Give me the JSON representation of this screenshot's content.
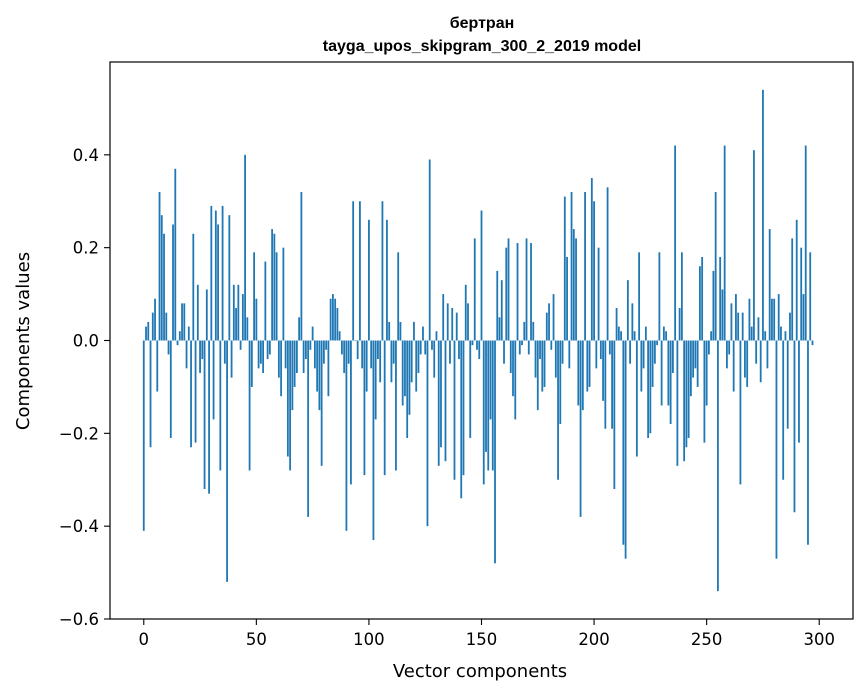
{
  "chart_data": {
    "type": "bar",
    "title": "бертран",
    "subtitle": "tayga_upos_skipgram_300_2_2019 model",
    "xlabel": "Vector components",
    "ylabel": "Components values",
    "xlim": [
      -15,
      315
    ],
    "ylim": [
      -0.6,
      0.6
    ],
    "xticks": [
      0,
      50,
      100,
      150,
      200,
      250,
      300
    ],
    "yticks": [
      -0.6,
      -0.4,
      -0.2,
      0.0,
      0.2,
      0.4
    ],
    "ytick_labels": [
      "−0.6",
      "−0.4",
      "−0.2",
      "0.0",
      "0.2",
      "0.4"
    ],
    "grid": false,
    "bar_color": "#1f77b4",
    "values": [
      -0.41,
      0.03,
      0.04,
      -0.23,
      0.06,
      0.09,
      -0.11,
      0.32,
      0.27,
      0.23,
      0.06,
      -0.03,
      -0.21,
      0.25,
      0.37,
      -0.01,
      0.02,
      0.08,
      0.08,
      -0.06,
      0.03,
      -0.23,
      0.23,
      -0.22,
      0.12,
      -0.07,
      -0.04,
      -0.32,
      0.11,
      -0.33,
      0.29,
      -0.17,
      0.28,
      0.25,
      -0.28,
      0.29,
      -0.05,
      -0.52,
      0.27,
      -0.08,
      0.12,
      0.07,
      0.12,
      -0.02,
      0.1,
      0.4,
      0.05,
      -0.28,
      -0.1,
      0.19,
      0.09,
      -0.06,
      -0.05,
      -0.07,
      0.17,
      -0.04,
      -0.03,
      0.24,
      0.23,
      0.19,
      -0.08,
      -0.12,
      0.2,
      -0.06,
      -0.25,
      -0.28,
      -0.15,
      -0.1,
      -0.07,
      0.05,
      0.32,
      -0.07,
      -0.04,
      -0.38,
      -0.02,
      0.03,
      -0.06,
      -0.11,
      -0.15,
      -0.27,
      -0.05,
      -0.02,
      -0.12,
      0.09,
      0.1,
      0.09,
      0.07,
      0.02,
      -0.03,
      -0.07,
      -0.41,
      -0.05,
      -0.31,
      0.3,
      0.0,
      -0.04,
      0.3,
      -0.06,
      -0.29,
      -0.11,
      0.26,
      -0.06,
      -0.43,
      -0.17,
      -0.04,
      -0.09,
      0.3,
      -0.29,
      0.26,
      0.04,
      -0.09,
      -0.05,
      -0.28,
      0.19,
      0.04,
      -0.14,
      -0.12,
      -0.21,
      -0.16,
      -0.09,
      0.04,
      -0.11,
      -0.07,
      -0.03,
      0.03,
      -0.03,
      -0.4,
      0.39,
      -0.02,
      -0.08,
      0.02,
      -0.27,
      -0.23,
      0.1,
      -0.26,
      0.08,
      -0.05,
      0.07,
      -0.3,
      0.06,
      -0.04,
      -0.34,
      -0.29,
      0.12,
      0.08,
      -0.21,
      -0.01,
      0.22,
      -0.02,
      -0.04,
      0.28,
      -0.31,
      -0.24,
      -0.28,
      -0.17,
      -0.28,
      -0.48,
      0.15,
      0.05,
      0.13,
      -0.05,
      0.2,
      0.22,
      -0.07,
      -0.12,
      -0.17,
      0.21,
      -0.03,
      -0.01,
      0.04,
      0.22,
      -0.03,
      0.21,
      0.04,
      -0.08,
      -0.15,
      -0.04,
      -0.11,
      -0.1,
      0.06,
      0.08,
      -0.02,
      0.1,
      -0.08,
      -0.3,
      -0.18,
      -0.05,
      0.31,
      0.18,
      -0.06,
      0.32,
      0.24,
      0.22,
      -0.14,
      -0.38,
      -0.15,
      0.32,
      -0.11,
      -0.1,
      0.35,
      0.3,
      -0.06,
      0.2,
      -0.04,
      -0.13,
      -0.19,
      0.33,
      -0.03,
      -0.19,
      -0.32,
      0.07,
      0.03,
      0.02,
      -0.44,
      -0.47,
      0.13,
      -0.05,
      0.08,
      0.02,
      -0.25,
      0.19,
      -0.11,
      -0.06,
      0.03,
      -0.21,
      -0.2,
      -0.1,
      -0.05,
      -0.01,
      0.19,
      -0.14,
      0.03,
      0.02,
      -0.14,
      -0.18,
      -0.07,
      0.42,
      -0.27,
      0.07,
      0.19,
      -0.26,
      -0.23,
      -0.21,
      -0.12,
      -0.08,
      -0.06,
      -0.1,
      0.16,
      0.18,
      -0.22,
      -0.14,
      -0.03,
      0.02,
      0.15,
      0.32,
      -0.54,
      0.18,
      0.11,
      0.42,
      -0.06,
      -0.03,
      0.08,
      -0.11,
      0.1,
      0.06,
      -0.31,
      0.06,
      -0.08,
      -0.1,
      0.09,
      0.03,
      0.41,
      -0.05,
      0.05,
      -0.09,
      0.54,
      0.02,
      -0.06,
      0.24,
      0.09,
      0.09,
      -0.47,
      0.1,
      0.03,
      -0.3,
      0.02,
      -0.19,
      0.06,
      0.22,
      -0.37,
      0.26,
      -0.22,
      0.2,
      0.1,
      0.42,
      -0.44,
      0.19,
      -0.01
    ]
  }
}
